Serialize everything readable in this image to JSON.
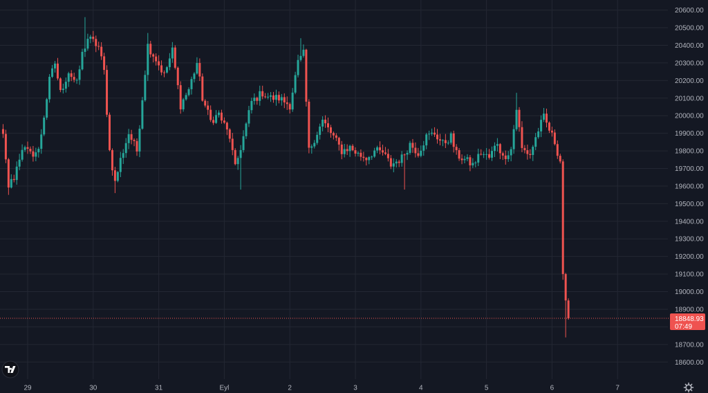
{
  "chart_data": {
    "type": "candlestick",
    "title": "",
    "ylim": [
      18550,
      20620
    ],
    "y_ticks": [
      20600,
      20500,
      20400,
      20300,
      20200,
      20100,
      20000,
      19900,
      19800,
      19700,
      19600,
      19500,
      19400,
      19300,
      19200,
      19100,
      19000,
      18900,
      18800,
      18700,
      18600
    ],
    "y_tick_labels": [
      "20600.00",
      "20500.00",
      "20400.00",
      "20300.00",
      "20200.00",
      "20100.00",
      "20000.00",
      "19900.00",
      "19800.00",
      "19700.00",
      "19600.00",
      "19500.00",
      "19400.00",
      "19300.00",
      "19200.00",
      "19100.00",
      "19000.00",
      "18900.00",
      "18800.00",
      "18700.00",
      "18600.00"
    ],
    "x_tick_labels": [
      "29",
      "30",
      "31",
      "Eyl",
      "2",
      "3",
      "4",
      "5",
      "6",
      "7"
    ],
    "grid": true,
    "candles_per_day": 24,
    "last_price": 18848.93,
    "last_price_label": "18848.93",
    "countdown_label": "07:49",
    "colors": {
      "up": "#26a69a",
      "down": "#ef5350",
      "background": "#141823",
      "grid": "#232733",
      "axis_text": "#b2b5be",
      "price_line": "#ef5350"
    },
    "path_keypoints": [
      [
        0,
        19950
      ],
      [
        3,
        19910
      ],
      [
        6,
        19980
      ],
      [
        9,
        19880
      ],
      [
        11,
        19600
      ],
      [
        13,
        19650
      ],
      [
        16,
        19820
      ],
      [
        19,
        19780
      ],
      [
        22,
        19800
      ],
      [
        26,
        20200
      ],
      [
        28,
        20300
      ],
      [
        30,
        20130
      ],
      [
        33,
        20250
      ],
      [
        36,
        20180
      ],
      [
        38,
        20350
      ],
      [
        40,
        20440
      ],
      [
        42,
        20420
      ],
      [
        44,
        20390
      ],
      [
        46,
        20250
      ],
      [
        48,
        19800
      ],
      [
        50,
        19620
      ],
      [
        52,
        19750
      ],
      [
        55,
        19900
      ],
      [
        58,
        19800
      ],
      [
        60,
        20100
      ],
      [
        62,
        20400
      ],
      [
        65,
        20320
      ],
      [
        68,
        20230
      ],
      [
        71,
        20370
      ],
      [
        74,
        20060
      ],
      [
        77,
        20150
      ],
      [
        80,
        20300
      ],
      [
        82,
        20100
      ],
      [
        85,
        19970
      ],
      [
        88,
        20010
      ],
      [
        92,
        19880
      ],
      [
        94,
        19700
      ],
      [
        97,
        19880
      ],
      [
        100,
        20080
      ],
      [
        104,
        20130
      ],
      [
        107,
        20100
      ],
      [
        110,
        20100
      ],
      [
        114,
        20060
      ],
      [
        117,
        20300
      ],
      [
        119,
        20350
      ],
      [
        121,
        19800
      ],
      [
        123,
        19870
      ],
      [
        126,
        19970
      ],
      [
        130,
        19880
      ],
      [
        133,
        19800
      ],
      [
        136,
        19820
      ],
      [
        139,
        19780
      ],
      [
        142,
        19760
      ],
      [
        145,
        19800
      ],
      [
        148,
        19790
      ],
      [
        151,
        19720
      ],
      [
        155,
        19760
      ],
      [
        158,
        19840
      ],
      [
        161,
        19790
      ],
      [
        164,
        19880
      ],
      [
        167,
        19900
      ],
      [
        170,
        19840
      ],
      [
        173,
        19880
      ],
      [
        175,
        19780
      ],
      [
        178,
        19750
      ],
      [
        181,
        19720
      ],
      [
        184,
        19790
      ],
      [
        187,
        19760
      ],
      [
        190,
        19850
      ],
      [
        192,
        19760
      ],
      [
        195,
        19810
      ],
      [
        197,
        20040
      ],
      [
        199,
        19810
      ],
      [
        202,
        19780
      ],
      [
        205,
        19920
      ],
      [
        207,
        19990
      ],
      [
        209,
        19920
      ],
      [
        211,
        19850
      ],
      [
        213,
        19740
      ],
      [
        214,
        19100
      ],
      [
        215,
        18950
      ],
      [
        216,
        18848.93
      ]
    ],
    "spikes": [
      [
        11,
        19550,
        "low"
      ],
      [
        39,
        20560,
        "high"
      ],
      [
        50,
        19560,
        "low"
      ],
      [
        62,
        20470,
        "high"
      ],
      [
        96,
        19580,
        "low"
      ],
      [
        118,
        20440,
        "high"
      ],
      [
        156,
        19580,
        "low"
      ],
      [
        197,
        20130,
        "high"
      ],
      [
        215,
        18740,
        "low"
      ]
    ]
  }
}
